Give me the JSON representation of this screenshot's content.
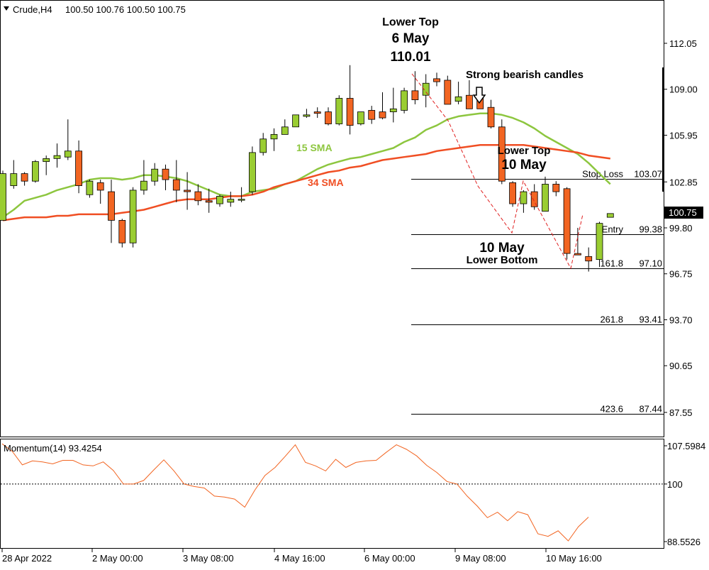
{
  "header": {
    "symbol_label": "Crude,H4",
    "ohlc": "100.50 100.76 100.50 100.75"
  },
  "price_axis": {
    "ticks": [
      "112.05",
      "109.00",
      "105.95",
      "102.85",
      "99.80",
      "96.75",
      "93.70",
      "90.65",
      "87.55"
    ],
    "current_price": "100.75"
  },
  "time_axis": {
    "labels": [
      "28 Apr 2022",
      "2 May 00:00",
      "3 May 08:00",
      "4 May 16:00",
      "6 May 00:00",
      "9 May 08:00",
      "10 May 16:00"
    ]
  },
  "annotations": {
    "lower_top_1_title": "Lower Top",
    "lower_top_1_date": "6 May",
    "lower_top_1_price": "110.01",
    "strong_bearish": "Strong bearish candles",
    "lower_top_2_title": "Lower Top",
    "lower_top_2_date": "10 May",
    "lower_bottom_date": "10 May",
    "lower_bottom_title": "Lower Bottom",
    "sma15_label": "15 SMA",
    "sma34_label": "34 SMA"
  },
  "levels": [
    {
      "left_label": "Stop Loss",
      "right_label": "103.07",
      "price": 103.07
    },
    {
      "left_label": "Entry",
      "right_label": "99.38",
      "price": 99.38
    },
    {
      "left_label": "161.8",
      "right_label": "97.10",
      "price": 97.1
    },
    {
      "left_label": "261.8",
      "right_label": "93.41",
      "price": 93.41
    },
    {
      "left_label": "423.6",
      "right_label": "87.44",
      "price": 87.44
    }
  ],
  "momentum": {
    "label": "Momentum(14) 93.4254",
    "ticks": [
      "107.5984",
      "100",
      "88.5526"
    ],
    "reference": 100
  },
  "colors": {
    "bull": "#9acd32",
    "bear": "#f26522",
    "sma15": "#8dc63f",
    "sma34": "#f04e23",
    "momentum": "#f26522",
    "bull_text": "#8dc63f",
    "bear_text": "#f04e23"
  },
  "chart_data": [
    {
      "type": "candlestick",
      "title": "Crude,H4",
      "ylim": [
        86.0,
        114.9
      ],
      "x_labels": [
        "28 Apr 2022",
        "2 May 00:00",
        "3 May 08:00",
        "4 May 16:00",
        "6 May 00:00",
        "9 May 08:00",
        "10 May 16:00"
      ],
      "candles": [
        {
          "o": 100.3,
          "h": 103.6,
          "l": 100.3,
          "c": 103.4
        },
        {
          "o": 102.6,
          "h": 104.3,
          "l": 102.4,
          "c": 103.4
        },
        {
          "o": 103.4,
          "h": 103.5,
          "l": 102.6,
          "c": 102.9
        },
        {
          "o": 102.9,
          "h": 104.3,
          "l": 102.8,
          "c": 104.2
        },
        {
          "o": 104.2,
          "h": 104.6,
          "l": 103.3,
          "c": 104.4
        },
        {
          "o": 104.4,
          "h": 105.4,
          "l": 103.8,
          "c": 104.6
        },
        {
          "o": 104.5,
          "h": 107.0,
          "l": 104.3,
          "c": 104.9
        },
        {
          "o": 104.9,
          "h": 105.6,
          "l": 102.1,
          "c": 102.6
        },
        {
          "o": 102.0,
          "h": 103.0,
          "l": 101.8,
          "c": 102.9
        },
        {
          "o": 102.8,
          "h": 103.0,
          "l": 101.4,
          "c": 102.3
        },
        {
          "o": 102.2,
          "h": 103.0,
          "l": 98.8,
          "c": 100.3
        },
        {
          "o": 100.3,
          "h": 100.4,
          "l": 98.5,
          "c": 98.8
        },
        {
          "o": 98.8,
          "h": 102.5,
          "l": 98.5,
          "c": 102.3
        },
        {
          "o": 102.3,
          "h": 104.3,
          "l": 102.0,
          "c": 102.9
        },
        {
          "o": 102.9,
          "h": 104.1,
          "l": 102.6,
          "c": 103.7
        },
        {
          "o": 103.7,
          "h": 104.0,
          "l": 102.3,
          "c": 103.0
        },
        {
          "o": 103.0,
          "h": 104.3,
          "l": 101.5,
          "c": 102.3
        },
        {
          "o": 102.3,
          "h": 103.5,
          "l": 101.0,
          "c": 102.2
        },
        {
          "o": 102.2,
          "h": 102.7,
          "l": 101.3,
          "c": 101.6
        },
        {
          "o": 101.6,
          "h": 102.4,
          "l": 100.8,
          "c": 101.5
        },
        {
          "o": 101.4,
          "h": 102.0,
          "l": 101.2,
          "c": 101.9
        },
        {
          "o": 101.5,
          "h": 102.2,
          "l": 101.2,
          "c": 101.7
        },
        {
          "o": 101.7,
          "h": 102.5,
          "l": 101.5,
          "c": 101.7
        },
        {
          "o": 102.2,
          "h": 105.2,
          "l": 102.0,
          "c": 104.8
        },
        {
          "o": 104.8,
          "h": 106.1,
          "l": 104.6,
          "c": 105.7
        },
        {
          "o": 105.7,
          "h": 106.4,
          "l": 104.9,
          "c": 106.0
        },
        {
          "o": 106.0,
          "h": 107.0,
          "l": 106.0,
          "c": 106.5
        },
        {
          "o": 106.5,
          "h": 107.3,
          "l": 106.5,
          "c": 107.3
        },
        {
          "o": 107.2,
          "h": 107.7,
          "l": 107.1,
          "c": 107.3
        },
        {
          "o": 107.5,
          "h": 107.8,
          "l": 107.1,
          "c": 107.4
        },
        {
          "o": 107.5,
          "h": 107.8,
          "l": 106.6,
          "c": 106.7
        },
        {
          "o": 106.7,
          "h": 108.6,
          "l": 106.6,
          "c": 108.4
        },
        {
          "o": 108.4,
          "h": 110.6,
          "l": 106.0,
          "c": 106.6
        },
        {
          "o": 106.7,
          "h": 107.5,
          "l": 106.6,
          "c": 107.5
        },
        {
          "o": 107.6,
          "h": 107.9,
          "l": 106.7,
          "c": 107.0
        },
        {
          "o": 107.5,
          "h": 108.8,
          "l": 107.0,
          "c": 107.1
        },
        {
          "o": 107.5,
          "h": 109.1,
          "l": 106.8,
          "c": 107.7
        },
        {
          "o": 107.6,
          "h": 109.1,
          "l": 107.4,
          "c": 108.9
        },
        {
          "o": 108.9,
          "h": 110.2,
          "l": 108.0,
          "c": 108.3
        },
        {
          "o": 108.6,
          "h": 110.0,
          "l": 107.8,
          "c": 109.4
        },
        {
          "o": 109.7,
          "h": 110.1,
          "l": 109.2,
          "c": 109.5
        },
        {
          "o": 109.6,
          "h": 109.9,
          "l": 108.0,
          "c": 108.0
        },
        {
          "o": 108.2,
          "h": 109.5,
          "l": 108.0,
          "c": 108.5
        },
        {
          "o": 108.6,
          "h": 109.6,
          "l": 107.8,
          "c": 107.7
        },
        {
          "o": 108.6,
          "h": 108.9,
          "l": 107.7,
          "c": 107.7
        },
        {
          "o": 107.8,
          "h": 108.3,
          "l": 106.4,
          "c": 106.5
        },
        {
          "o": 106.5,
          "h": 107.0,
          "l": 102.7,
          "c": 102.9
        },
        {
          "o": 102.8,
          "h": 102.9,
          "l": 101.2,
          "c": 101.4
        },
        {
          "o": 101.4,
          "h": 102.3,
          "l": 100.8,
          "c": 102.2
        },
        {
          "o": 102.2,
          "h": 102.7,
          "l": 101.0,
          "c": 101.2
        },
        {
          "o": 100.9,
          "h": 103.2,
          "l": 100.9,
          "c": 102.7
        },
        {
          "o": 102.7,
          "h": 102.9,
          "l": 101.9,
          "c": 102.2
        },
        {
          "o": 102.4,
          "h": 102.5,
          "l": 97.7,
          "c": 98.1
        },
        {
          "o": 98.1,
          "h": 99.8,
          "l": 98.0,
          "c": 98.0
        },
        {
          "o": 97.9,
          "h": 98.5,
          "l": 96.9,
          "c": 97.6
        },
        {
          "o": 97.7,
          "h": 100.2,
          "l": 97.2,
          "c": 100.1
        },
        {
          "o": 100.5,
          "h": 100.76,
          "l": 100.5,
          "c": 100.75
        }
      ],
      "series": [
        {
          "name": "15 SMA",
          "values": [
            100.5,
            101.0,
            101.6,
            101.8,
            102.0,
            102.3,
            102.5,
            102.7,
            103.0,
            103.1,
            103.1,
            103.0,
            103.1,
            103.3,
            103.3,
            103.2,
            103.1,
            102.9,
            102.6,
            102.3,
            102.0,
            101.9,
            101.9,
            102.2,
            102.3,
            102.4,
            102.7,
            102.9,
            103.3,
            103.7,
            104.0,
            104.2,
            104.4,
            104.5,
            104.7,
            104.9,
            105.1,
            105.5,
            105.8,
            106.3,
            106.6,
            107.0,
            107.2,
            107.3,
            107.4,
            107.4,
            107.3,
            107.1,
            106.8,
            106.4,
            105.9,
            105.5,
            105.1,
            104.7,
            104.1,
            103.4,
            102.7
          ]
        },
        {
          "name": "34 SMA",
          "values": [
            100.3,
            100.4,
            100.5,
            100.5,
            100.5,
            100.6,
            100.6,
            100.7,
            100.7,
            100.7,
            100.7,
            100.8,
            100.9,
            101.0,
            101.2,
            101.4,
            101.6,
            101.7,
            101.7,
            101.7,
            101.8,
            101.9,
            101.9,
            102.0,
            102.2,
            102.5,
            102.7,
            102.9,
            103.1,
            103.3,
            103.5,
            103.6,
            103.8,
            103.9,
            104.1,
            104.3,
            104.4,
            104.5,
            104.6,
            104.7,
            104.9,
            105.0,
            105.1,
            105.2,
            105.3,
            105.3,
            105.3,
            105.3,
            105.3,
            105.2,
            105.1,
            105.0,
            104.9,
            104.8,
            104.6,
            104.5,
            104.4
          ]
        }
      ]
    },
    {
      "type": "line",
      "title": "Momentum(14) 93.4254",
      "ylim": [
        87.5,
        110.0
      ],
      "series": [
        {
          "name": "Momentum(14)",
          "values": [
            108.0,
            106.5,
            103.8,
            104.6,
            104.4,
            104.0,
            104.7,
            104.7,
            103.8,
            103.6,
            104.4,
            102.7,
            100.0,
            100.0,
            100.7,
            102.8,
            104.8,
            102.6,
            100.0,
            99.5,
            99.2,
            97.6,
            97.4,
            97.0,
            95.4,
            98.8,
            101.7,
            103.3,
            105.5,
            107.8,
            104.3,
            103.6,
            102.6,
            104.9,
            103.3,
            104.3,
            104.6,
            104.7,
            106.3,
            107.8,
            106.9,
            105.6,
            103.7,
            102.3,
            100.5,
            100.0,
            97.6,
            95.6,
            93.3,
            94.4,
            92.7,
            94.5,
            93.9,
            90.1,
            89.6,
            90.7,
            88.7,
            91.5,
            93.4254
          ]
        }
      ]
    }
  ]
}
